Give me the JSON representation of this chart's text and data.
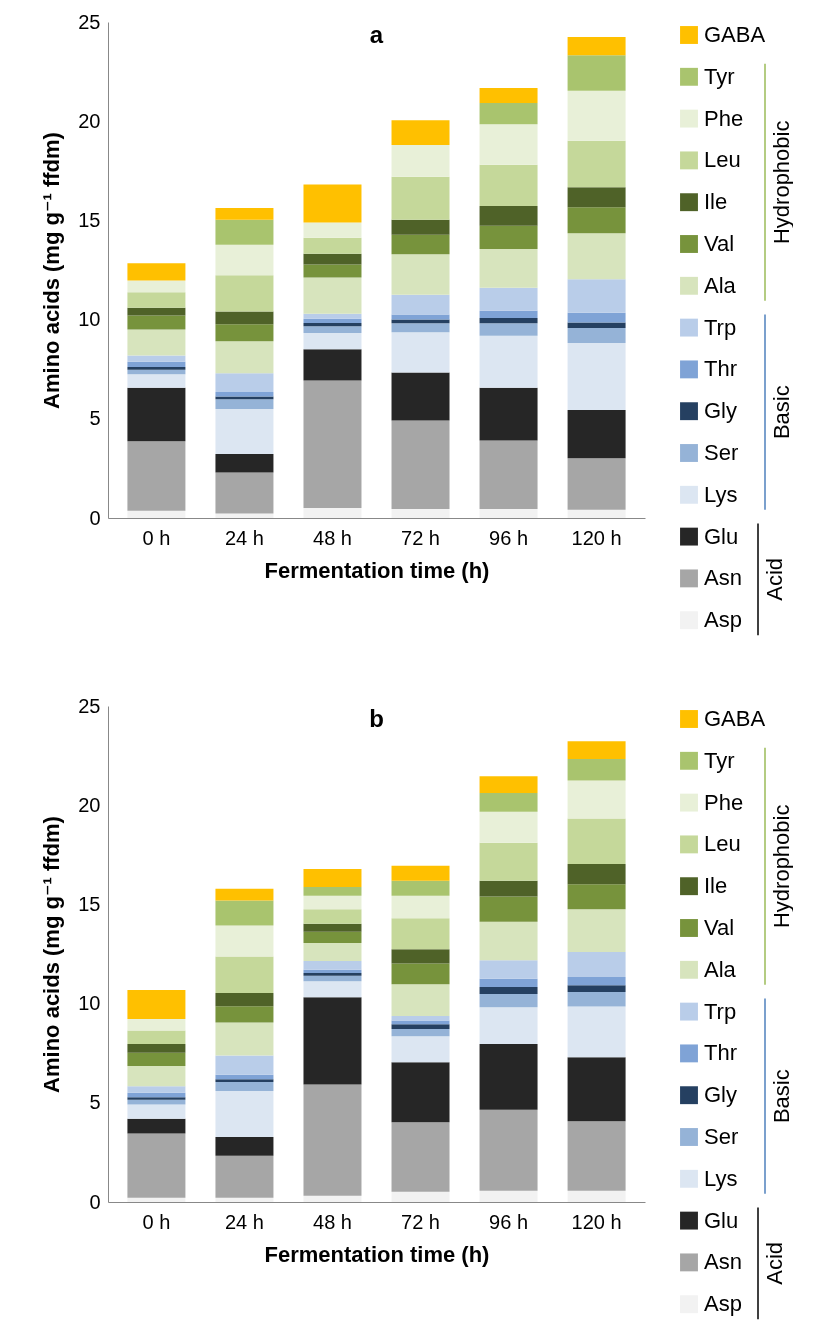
{
  "chart_data": [
    {
      "type": "bar",
      "title": "a",
      "xlabel": "Fermentation time (h)",
      "ylabel": "Amino acids (mg g⁻¹ ffdm)",
      "categories": [
        "0 h",
        "24 h",
        "48 h",
        "72 h",
        "96 h",
        "120 h"
      ],
      "stacked": true,
      "ylim": [
        0,
        25
      ],
      "yticks": [
        0,
        5,
        10,
        15,
        20,
        25
      ],
      "legend": "right",
      "annotations": [
        "Hydrophobic",
        "Basic",
        "Acid"
      ],
      "series": [
        {
          "name": "Asp",
          "color": "#f2f2f2",
          "values": [
            0.36,
            0.23,
            0.5,
            0.45,
            0.45,
            0.41
          ]
        },
        {
          "name": "Asn",
          "color": "#a6a6a6",
          "values": [
            3.51,
            2.06,
            6.43,
            4.46,
            3.46,
            2.6
          ]
        },
        {
          "name": "Glu",
          "color": "#262626",
          "values": [
            2.7,
            0.93,
            1.57,
            2.42,
            2.66,
            2.43
          ]
        },
        {
          "name": "Lys",
          "color": "#dce6f2",
          "values": [
            0.67,
            2.27,
            0.83,
            2.03,
            2.61,
            3.38
          ]
        },
        {
          "name": "Ser",
          "color": "#95b3d7",
          "values": [
            0.23,
            0.49,
            0.34,
            0.45,
            0.63,
            0.76
          ]
        },
        {
          "name": "Gly",
          "color": "#254061",
          "values": [
            0.14,
            0.14,
            0.16,
            0.2,
            0.27,
            0.27
          ]
        },
        {
          "name": "Thr",
          "color": "#7fa3d6",
          "values": [
            0.27,
            0.23,
            0.21,
            0.25,
            0.36,
            0.5
          ]
        },
        {
          "name": "Trp",
          "color": "#b9cde9",
          "values": [
            0.31,
            0.94,
            0.26,
            0.99,
            1.17,
            1.68
          ]
        },
        {
          "name": "Ala",
          "color": "#d7e4bd",
          "values": [
            1.31,
            1.62,
            1.82,
            2.04,
            1.95,
            2.32
          ]
        },
        {
          "name": "Val",
          "color": "#77933c",
          "values": [
            0.71,
            0.85,
            0.66,
            0.99,
            1.17,
            1.31
          ]
        },
        {
          "name": "Ile",
          "color": "#4f6228",
          "values": [
            0.39,
            0.65,
            0.54,
            0.75,
            0.99,
            1.01
          ]
        },
        {
          "name": "Leu",
          "color": "#c5d89a",
          "values": [
            0.78,
            1.83,
            0.81,
            2.17,
            2.09,
            2.34
          ]
        },
        {
          "name": "Phe",
          "color": "#e8f0d8",
          "values": [
            0.59,
            1.53,
            0.76,
            1.6,
            2.03,
            2.52
          ]
        },
        {
          "name": "Tyr",
          "color": "#a9c46e",
          "values": [
            0,
            1.26,
            0,
            0,
            1.08,
            1.8
          ]
        },
        {
          "name": "GABA",
          "color": "#ffc000",
          "values": [
            0.87,
            0.6,
            1.92,
            1.25,
            0.75,
            0.92
          ]
        }
      ]
    },
    {
      "type": "bar",
      "title": "b",
      "xlabel": "Fermentation time (h)",
      "ylabel": "Amino acids (mg g⁻¹  ffdm)",
      "categories": [
        "0 h",
        "24 h",
        "48 h",
        "72 h",
        "96 h",
        "120 h"
      ],
      "stacked": true,
      "ylim": [
        0,
        25
      ],
      "yticks": [
        0,
        5,
        10,
        15,
        20,
        25
      ],
      "legend": "right",
      "annotations": [
        "Hydrophobic",
        "Basic",
        "Acid"
      ],
      "series": [
        {
          "name": "Asp",
          "color": "#f2f2f2",
          "values": [
            0.22,
            0.22,
            0.31,
            0.52,
            0.57,
            0.57
          ]
        },
        {
          "name": "Asn",
          "color": "#a6a6a6",
          "values": [
            3.23,
            2.11,
            5.61,
            3.5,
            4.08,
            3.5
          ]
        },
        {
          "name": "Glu",
          "color": "#262626",
          "values": [
            0.75,
            0.94,
            4.4,
            3.03,
            3.32,
            3.23
          ]
        },
        {
          "name": "Lys",
          "color": "#dce6f2",
          "values": [
            0.72,
            2.33,
            0.81,
            1.31,
            1.85,
            2.55
          ]
        },
        {
          "name": "Ser",
          "color": "#95b3d7",
          "values": [
            0.23,
            0.45,
            0.27,
            0.36,
            0.66,
            0.74
          ]
        },
        {
          "name": "Gly",
          "color": "#254061",
          "values": [
            0.13,
            0.14,
            0.14,
            0.24,
            0.36,
            0.34
          ]
        },
        {
          "name": "Thr",
          "color": "#7fa3d6",
          "values": [
            0.23,
            0.22,
            0.16,
            0.19,
            0.41,
            0.41
          ]
        },
        {
          "name": "Trp",
          "color": "#b9cde9",
          "values": [
            0.32,
            0.98,
            0.45,
            0.22,
            0.94,
            1.26
          ]
        },
        {
          "name": "Ala",
          "color": "#d7e4bd",
          "values": [
            1.03,
            1.66,
            0.9,
            1.61,
            1.93,
            2.15
          ]
        },
        {
          "name": "Val",
          "color": "#77933c",
          "values": [
            0.66,
            0.82,
            0.57,
            1.04,
            1.28,
            1.26
          ]
        },
        {
          "name": "Ile",
          "color": "#4f6228",
          "values": [
            0.45,
            0.66,
            0.41,
            0.72,
            0.79,
            1.02
          ]
        },
        {
          "name": "Leu",
          "color": "#c5d89a",
          "values": [
            0.68,
            1.84,
            0.72,
            1.56,
            1.92,
            2.3
          ]
        },
        {
          "name": "Phe",
          "color": "#e8f0d8",
          "values": [
            0.57,
            1.57,
            0.68,
            1.13,
            1.56,
            1.92
          ]
        },
        {
          "name": "Tyr",
          "color": "#a9c46e",
          "values": [
            0,
            1.26,
            0.45,
            0.76,
            0.95,
            1.08
          ]
        },
        {
          "name": "GABA",
          "color": "#ffc000",
          "values": [
            1.46,
            0.59,
            0.9,
            0.76,
            0.84,
            0.89
          ]
        }
      ]
    }
  ]
}
